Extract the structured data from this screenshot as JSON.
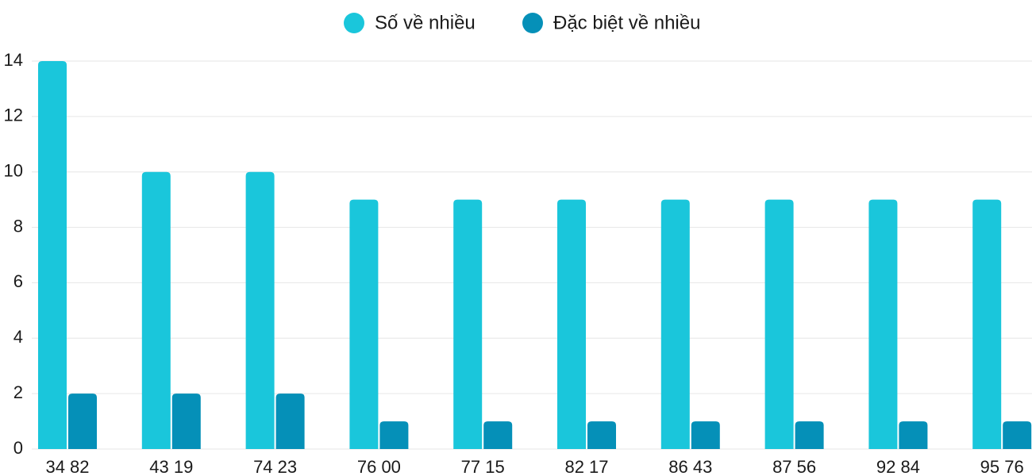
{
  "chart_data": {
    "type": "bar",
    "categories": [
      "34 82",
      "43 19",
      "74 23",
      "76 00",
      "77 15",
      "82 17",
      "86 43",
      "87 56",
      "92 84",
      "95 76"
    ],
    "series": [
      {
        "name": "Số về nhiều",
        "color": "#1ac6db",
        "values": [
          14,
          10,
          10,
          9,
          9,
          9,
          9,
          9,
          9,
          9
        ]
      },
      {
        "name": "Đặc biệt về nhiều",
        "color": "#0590b8",
        "values": [
          2,
          2,
          2,
          1,
          1,
          1,
          1,
          1,
          1,
          1
        ]
      }
    ],
    "ylim": [
      0,
      14
    ],
    "yticks": [
      0,
      2,
      4,
      6,
      8,
      10,
      12,
      14
    ],
    "grid": true,
    "legend": "top"
  }
}
